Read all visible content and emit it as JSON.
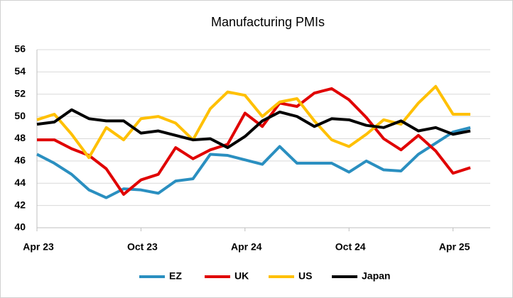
{
  "chart_data": {
    "type": "line",
    "title": "Manufacturing PMIs",
    "categories": [
      "Apr 23",
      null,
      null,
      null,
      null,
      null,
      "Oct 23",
      null,
      null,
      null,
      null,
      null,
      "Apr 24",
      null,
      null,
      null,
      null,
      null,
      "Oct 24",
      null,
      null,
      null,
      null,
      null,
      "Apr 25",
      null
    ],
    "series": [
      {
        "name": "EZ",
        "color": "#2a8fc0",
        "values": [
          46.6,
          45.8,
          44.8,
          43.4,
          42.7,
          43.5,
          43.4,
          43.1,
          44.2,
          44.4,
          46.6,
          46.5,
          46.1,
          45.7,
          47.3,
          45.8,
          45.8,
          45.8,
          45.0,
          46.0,
          45.2,
          45.1,
          46.6,
          47.6,
          48.6,
          49.0
        ]
      },
      {
        "name": "UK",
        "color": "#e00000",
        "values": [
          47.9,
          47.9,
          47.1,
          46.5,
          45.3,
          43.0,
          44.3,
          44.8,
          47.2,
          46.2,
          47.0,
          47.5,
          50.3,
          49.1,
          51.2,
          50.9,
          52.1,
          52.5,
          51.5,
          49.9,
          48.0,
          47.0,
          48.3,
          46.9,
          44.9,
          45.4
        ]
      },
      {
        "name": "US",
        "color": "#ffc000",
        "values": [
          49.7,
          50.2,
          48.4,
          46.3,
          49.0,
          47.9,
          49.8,
          50.0,
          49.4,
          47.9,
          50.7,
          52.2,
          51.9,
          50.0,
          51.3,
          51.6,
          49.6,
          47.9,
          47.3,
          48.4,
          49.7,
          49.3,
          51.2,
          52.7,
          50.2,
          50.2
        ]
      },
      {
        "name": "Japan",
        "color": "#000000",
        "values": [
          49.3,
          49.5,
          50.6,
          49.8,
          49.6,
          49.6,
          48.5,
          48.7,
          48.3,
          47.9,
          48.0,
          47.2,
          48.2,
          49.6,
          50.4,
          50.0,
          49.1,
          49.8,
          49.7,
          49.2,
          49.0,
          49.6,
          48.7,
          49.0,
          48.4,
          48.7
        ]
      }
    ],
    "ylim": [
      40,
      56
    ],
    "yticks": [
      40,
      42,
      44,
      46,
      48,
      50,
      52,
      54,
      56
    ],
    "grid": true
  }
}
